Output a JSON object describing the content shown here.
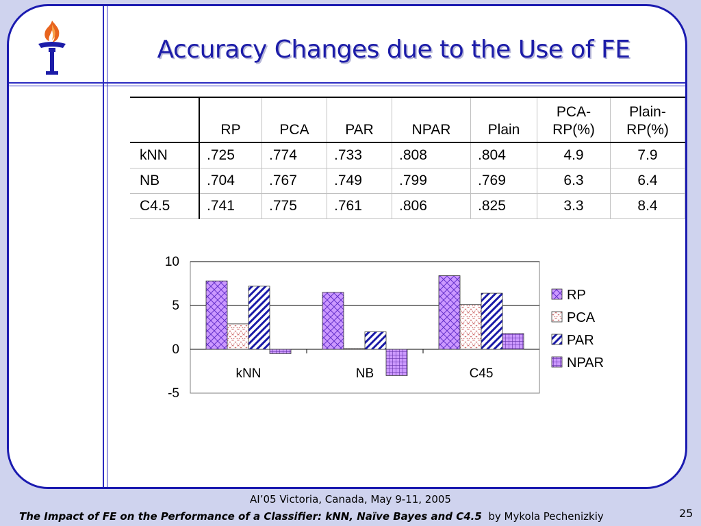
{
  "slide": {
    "title": "Accuracy Changes due to the Use of FE",
    "footer_line1": "AI’05  Victoria, Canada,  May 9-11, 2005",
    "footer_line2_title": "The Impact of FE on the Performance of a Classifier: kNN, Naïve Bayes and C4.5",
    "footer_line2_author": "by Mykola Pechenizkiy",
    "page_number": "25"
  },
  "table": {
    "headers": [
      "",
      "RP",
      "PCA",
      "PAR",
      "NPAR",
      "Plain",
      "PCA-\nRP(%)",
      "Plain-\nRP(%)"
    ],
    "rows": [
      [
        "kNN",
        ".725",
        ".774",
        ".733",
        ".808",
        ".804",
        "4.9",
        "7.9"
      ],
      [
        "NB",
        ".704",
        ".767",
        ".749",
        ".799",
        ".769",
        "6.3",
        "6.4"
      ],
      [
        "C4.5",
        ".741",
        ".775",
        ".761",
        ".806",
        ".825",
        "3.3",
        "8.4"
      ]
    ]
  },
  "chart_data": {
    "type": "bar",
    "categories": [
      "kNN",
      "NB",
      "C45"
    ],
    "series": [
      {
        "name": "RP",
        "values": [
          7.8,
          6.5,
          8.4
        ]
      },
      {
        "name": "PCA",
        "values": [
          2.9,
          0.1,
          5.1
        ]
      },
      {
        "name": "PAR",
        "values": [
          7.2,
          2.0,
          6.4
        ]
      },
      {
        "name": "NPAR",
        "values": [
          -0.5,
          -3.0,
          1.8
        ]
      }
    ],
    "ylim": [
      -5,
      10
    ],
    "yticks": [
      "10",
      "5",
      "0",
      "-5"
    ],
    "grid": true,
    "legend_position": "right",
    "colors": {
      "RP": {
        "fill": "#cc99ff",
        "line": "#6633cc"
      },
      "PCA": {
        "fill": "#ffffff",
        "line": "#cc6666"
      },
      "PAR": {
        "fill": "#ffffff",
        "line": "#1a1aa8"
      },
      "NPAR": {
        "fill": "#cc99ff",
        "line": "#6633aa"
      }
    }
  },
  "colors": {
    "frame": "#1b1bb0",
    "title": "#1c1ca8",
    "background": "#cfd3ee"
  }
}
